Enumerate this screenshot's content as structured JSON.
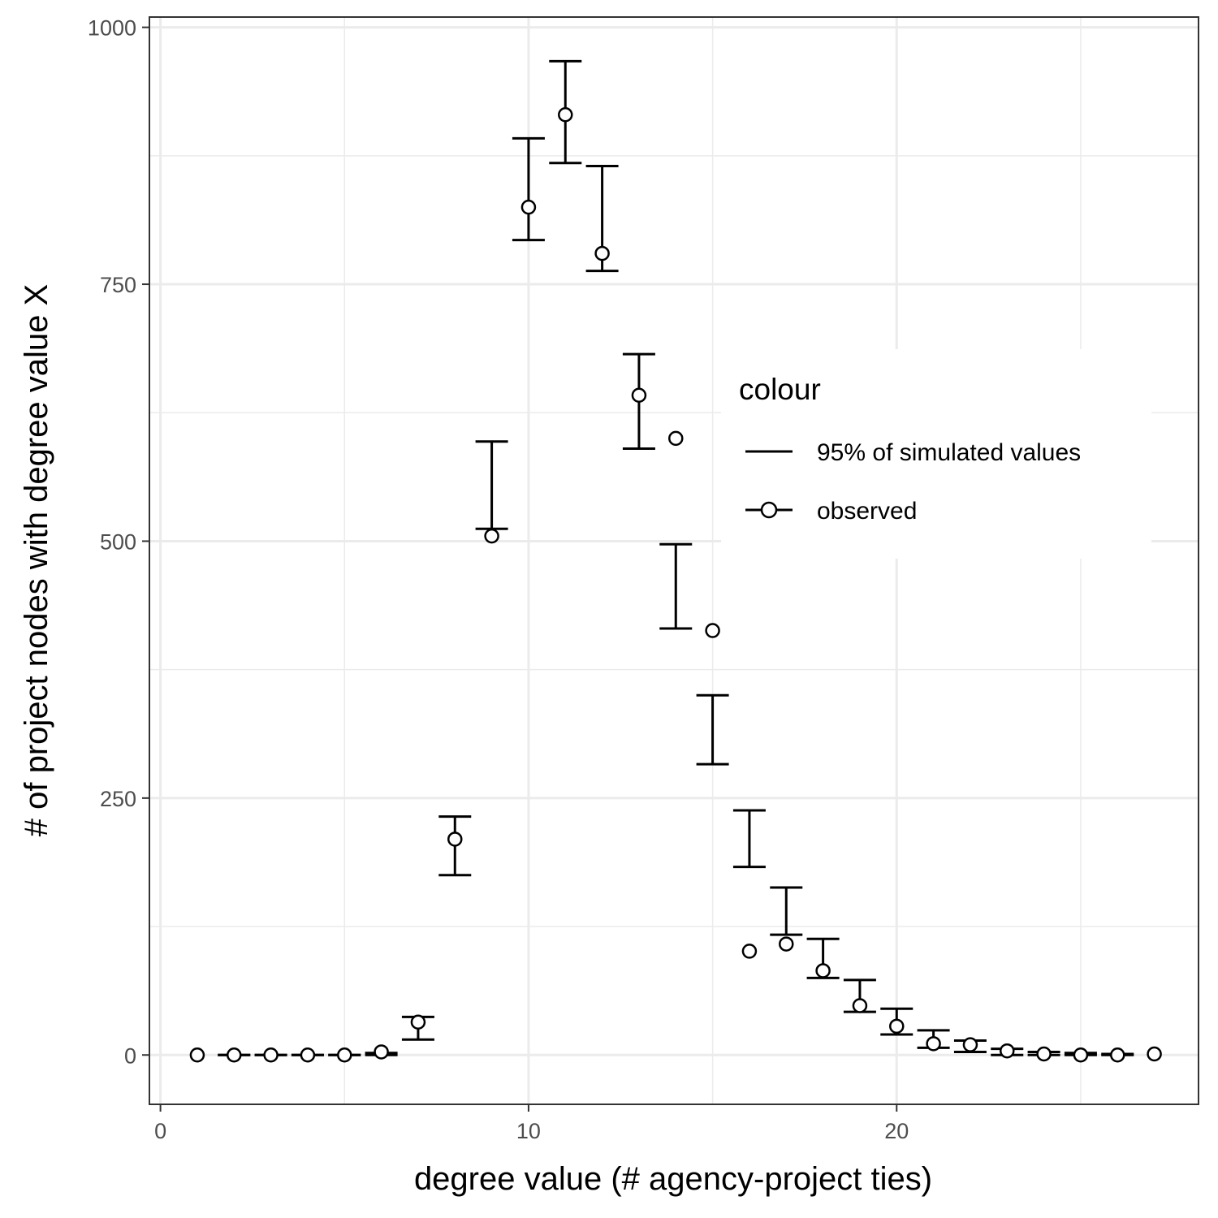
{
  "chart_data": {
    "type": "scatter",
    "title": "",
    "xlabel": "degree value (# agency-project ties)",
    "ylabel": "# of project nodes with degree value X",
    "xlim": [
      -0.3,
      28.2
    ],
    "ylim": [
      -48,
      1010
    ],
    "x_ticks": [
      0,
      10,
      20
    ],
    "x_tick_labels": [
      "0",
      "10",
      "20"
    ],
    "y_ticks": [
      0,
      250,
      500,
      750,
      1000
    ],
    "y_tick_labels": [
      "0",
      "250",
      "500",
      "750",
      "1000"
    ],
    "x_minor_ticks": [
      5,
      15,
      25
    ],
    "y_minor_ticks": [
      125,
      375,
      625,
      875
    ],
    "grid": true,
    "legend": {
      "title": "colour",
      "placement": "right-center",
      "entries": [
        "95% of simulated values",
        "observed"
      ]
    },
    "series": [
      {
        "name": "95% of simulated values",
        "kind": "errorbar",
        "x": [
          2,
          3,
          4,
          5,
          6,
          7,
          8,
          9,
          10,
          11,
          12,
          13,
          14,
          15,
          16,
          17,
          18,
          19,
          20,
          21,
          22,
          23,
          24,
          25,
          26
        ],
        "lower": [
          0,
          0,
          0,
          0,
          0,
          15,
          175,
          512,
          793,
          868,
          763,
          590,
          415,
          283,
          183,
          117,
          75,
          42,
          20,
          7,
          3,
          0,
          0,
          0,
          0
        ],
        "upper": [
          0,
          0,
          0,
          0,
          2,
          37,
          232,
          597,
          892,
          967,
          865,
          682,
          497,
          350,
          238,
          163,
          113,
          73,
          45,
          24,
          14,
          6,
          3,
          2,
          1
        ]
      },
      {
        "name": "observed",
        "kind": "point",
        "x": [
          1,
          2,
          3,
          4,
          5,
          6,
          7,
          8,
          9,
          10,
          11,
          12,
          13,
          14,
          15,
          16,
          17,
          18,
          19,
          20,
          21,
          22,
          23,
          24,
          25,
          26,
          27
        ],
        "y": [
          0,
          0,
          0,
          0,
          0,
          3,
          32,
          210,
          505,
          825,
          915,
          780,
          642,
          600,
          413,
          101,
          108,
          82,
          48,
          28,
          11,
          10,
          4,
          1,
          0,
          0,
          1
        ]
      }
    ]
  }
}
